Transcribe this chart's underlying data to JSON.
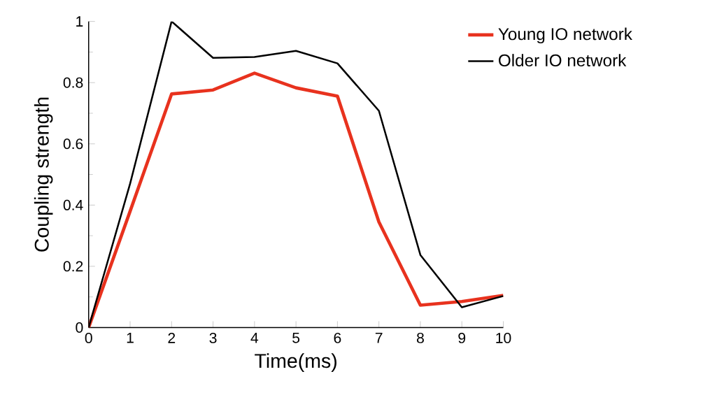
{
  "chart_data": {
    "type": "line",
    "xlabel": "Time(ms)",
    "ylabel": "Coupling  strength",
    "x": [
      0,
      1,
      2,
      3,
      4,
      5,
      6,
      7,
      8,
      9,
      10
    ],
    "series": [
      {
        "name": "Young IO network",
        "color": "#e8321e",
        "values": [
          0,
          0.38,
          0.763,
          0.776,
          0.831,
          0.783,
          0.756,
          0.345,
          0.073,
          0.085,
          0.105
        ]
      },
      {
        "name": "Older IO network",
        "color": "#000000",
        "values": [
          0,
          0.47,
          1.0,
          0.881,
          0.884,
          0.904,
          0.863,
          0.708,
          0.237,
          0.066,
          0.103
        ]
      }
    ],
    "xlim": [
      0,
      10
    ],
    "ylim": [
      0,
      1
    ],
    "xticks": [
      0,
      1,
      2,
      3,
      4,
      5,
      6,
      7,
      8,
      9,
      10
    ],
    "yticks": [
      0,
      0.2,
      0.4,
      0.6,
      0.8,
      1
    ],
    "grid": false,
    "legend": "top right",
    "marker": "none",
    "line_style": "solid"
  }
}
